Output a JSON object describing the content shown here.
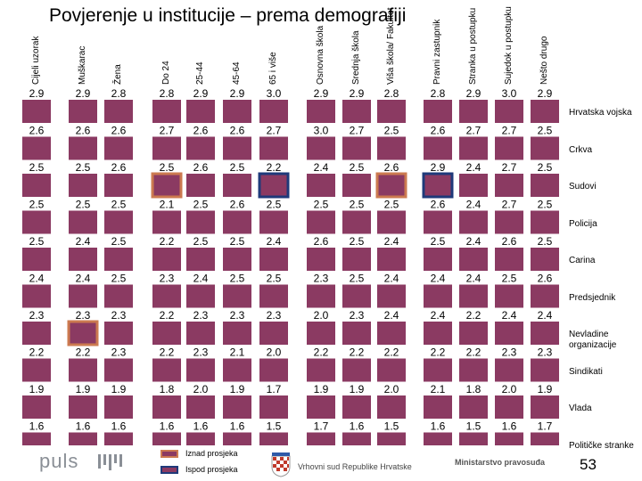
{
  "title": "Povjerenje u institucije – prema demografiji",
  "legend": [
    {
      "label": "Iznad prosjeka",
      "border_color": "#cc7a50"
    },
    {
      "label": "Ispod prosjeka",
      "border_color": "#1f3a7a"
    }
  ],
  "colors": {
    "cell": "#8b3a62",
    "above": "#cc7a50",
    "below": "#1f3a7a"
  },
  "footer": {
    "logo": "puls",
    "court": "Vrhovni sud Republike Hrvatske",
    "ministry": "Ministarstvo pravosuđa",
    "page_number": "53"
  },
  "chart_data": {
    "type": "table",
    "title": "Povjerenje u institucije – prema demografiji",
    "columns": [
      "Cijeli uzorak",
      "Muškarac",
      "Žena",
      "Do 24",
      "25-44",
      "45-64",
      "65 i više",
      "Osnovna škola",
      "Srednja škola",
      "Viša škola/ Fakultet",
      "Pravni zastupnik",
      "Stranka u postupku",
      "Sujedok u postupku",
      "Nešto drugo"
    ],
    "rows": [
      {
        "label": "Hrvatska vojska",
        "values": [
          "2.9",
          "2.9",
          "2.8",
          "2.8",
          "2.9",
          "2.9",
          "3.0",
          "2.9",
          "2.9",
          "2.8",
          "2.8",
          "2.9",
          "3.0",
          "2.9"
        ]
      },
      {
        "label": "Crkva",
        "values": [
          "2.6",
          "2.6",
          "2.6",
          "2.7",
          "2.6",
          "2.6",
          "2.7",
          "3.0",
          "2.7",
          "2.5",
          "2.6",
          "2.7",
          "2.7",
          "2.5"
        ]
      },
      {
        "label": "Sudovi",
        "values": [
          "2.5",
          "2.5",
          "2.6",
          "2.5",
          "2.6",
          "2.5",
          "2.2",
          "2.4",
          "2.5",
          "2.6",
          "2.9",
          "2.4",
          "2.7",
          "2.5"
        ]
      },
      {
        "label": "Policija",
        "values": [
          "2.5",
          "2.5",
          "2.5",
          "2.1",
          "2.5",
          "2.6",
          "2.5",
          "2.5",
          "2.5",
          "2.5",
          "2.6",
          "2.4",
          "2.7",
          "2.5"
        ]
      },
      {
        "label": "Carina",
        "values": [
          "2.5",
          "2.4",
          "2.5",
          "2.2",
          "2.5",
          "2.5",
          "2.4",
          "2.6",
          "2.5",
          "2.4",
          "2.5",
          "2.4",
          "2.6",
          "2.5"
        ]
      },
      {
        "label": "Predsjednik",
        "values": [
          "2.4",
          "2.4",
          "2.5",
          "2.3",
          "2.4",
          "2.5",
          "2.5",
          "2.3",
          "2.5",
          "2.4",
          "2.4",
          "2.4",
          "2.5",
          "2.6"
        ]
      },
      {
        "label": "Nevladine organizacije",
        "values": [
          "2.3",
          "2.3",
          "2.3",
          "2.2",
          "2.3",
          "2.3",
          "2.3",
          "2.0",
          "2.3",
          "2.4",
          "2.4",
          "2.2",
          "2.4",
          "2.4"
        ]
      },
      {
        "label": "Sindikati",
        "values": [
          "2.2",
          "2.2",
          "2.3",
          "2.2",
          "2.3",
          "2.1",
          "2.0",
          "2.2",
          "2.2",
          "2.2",
          "2.2",
          "2.2",
          "2.3",
          "2.3"
        ]
      },
      {
        "label": "Vlada",
        "values": [
          "1.9",
          "1.9",
          "1.9",
          "1.8",
          "2.0",
          "1.9",
          "1.7",
          "1.9",
          "1.9",
          "2.0",
          "2.1",
          "1.8",
          "2.0",
          "1.9"
        ]
      },
      {
        "label": "Političke stranke",
        "values": [
          "1.6",
          "1.6",
          "1.6",
          "1.6",
          "1.6",
          "1.6",
          "1.5",
          "1.7",
          "1.6",
          "1.5",
          "1.6",
          "1.5",
          "1.6",
          "1.7"
        ]
      }
    ],
    "highlights": {
      "above": [
        [
          2,
          3
        ],
        [
          2,
          9
        ],
        [
          2,
          10
        ],
        [
          6,
          1
        ]
      ],
      "below": [
        [
          2,
          6
        ],
        [
          2,
          10
        ]
      ]
    }
  }
}
